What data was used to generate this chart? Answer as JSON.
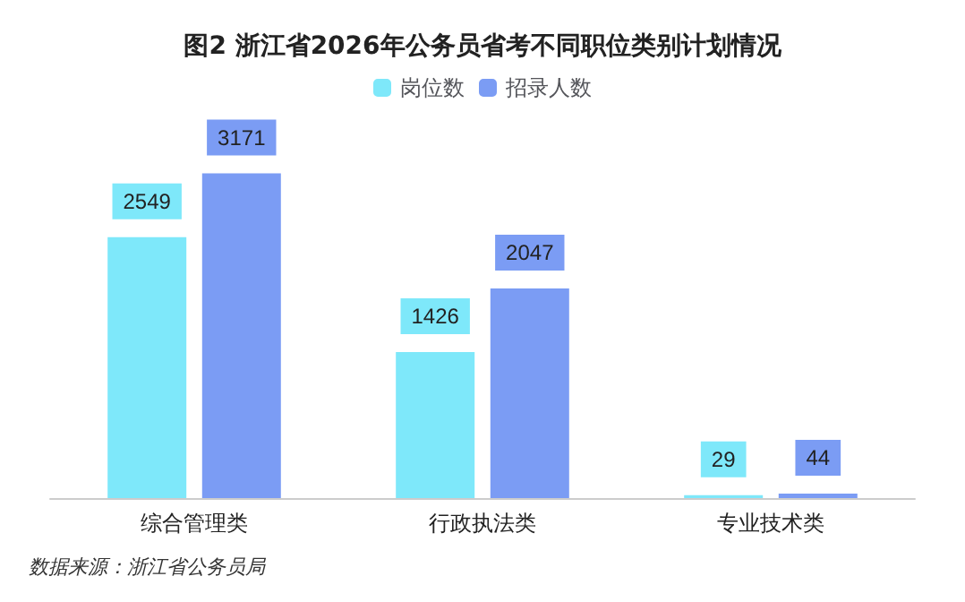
{
  "chart_data": {
    "type": "bar",
    "title": "图2 浙江省2026年公务员省考不同职位类别计划情况",
    "categories": [
      "综合管理类",
      "行政执法类",
      "专业技术类"
    ],
    "series": [
      {
        "name": "岗位数",
        "color": "#7ee8fa",
        "values": [
          2549,
          1426,
          29
        ]
      },
      {
        "name": "招录人数",
        "color": "#7b9cf4",
        "values": [
          3171,
          2047,
          44
        ]
      }
    ],
    "data_labels": true,
    "legend": "top",
    "annotations": [
      "数据来源：浙江省公务员局"
    ]
  }
}
